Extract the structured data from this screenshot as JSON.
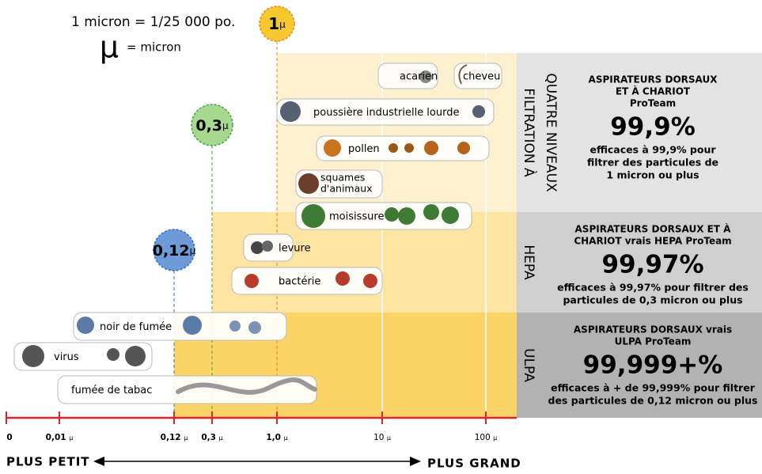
{
  "header": {
    "conversion": "1 micron = 1/25 000 po.",
    "symbol": "µ",
    "symbol_text": "= micron"
  },
  "badges": [
    {
      "value": "1",
      "unit": "µ"
    },
    {
      "value": "0,3",
      "unit": "µ"
    },
    {
      "value": "0,12",
      "unit": "µ"
    }
  ],
  "particles": [
    "acarien",
    "cheveu",
    "poussière industrielle lourde",
    "pollen",
    [
      "squames",
      "d'animaux"
    ],
    "moisissure",
    "levure",
    "bactérie",
    "noir de fumée",
    "virus",
    "fumée de tabac"
  ],
  "panels": [
    {
      "side": [
        "FILTRATION À",
        "QUATRE NIVEAUX"
      ],
      "heading": [
        "ASPIRATEURS DORSAUX",
        "ET À CHARIOT",
        "ProTeam"
      ],
      "percent": "99,9%",
      "description": [
        "efficaces à 99,9% pour",
        "filtrer des particules de",
        "1 micron ou plus"
      ]
    },
    {
      "side": [
        "HEPA"
      ],
      "heading": [
        "ASPIRATEURS DORSAUX ET À",
        "CHARIOT vrais HEPA ProTeam"
      ],
      "percent": "99,97%",
      "description": [
        "efficaces à 99,97% pour filtrer des",
        "particules de 0,3 micron ou plus"
      ]
    },
    {
      "side": [
        "ULPA"
      ],
      "heading": [
        "ASPIRATEURS DORSAUX vrais",
        "ULPA ProTeam"
      ],
      "percent": "99,999+%",
      "description": [
        "efficaces à + de 99,999% pour filtrer",
        "des particules de 0,12 micron ou plus"
      ]
    }
  ],
  "axis": {
    "ticks": [
      {
        "value": "0"
      },
      {
        "value": "0,01",
        "unit": "µ"
      },
      {
        "value": "0,12",
        "unit": "µ"
      },
      {
        "value": "0,3",
        "unit": "µ"
      },
      {
        "value": "1,0",
        "unit": "µ"
      },
      {
        "value": "10",
        "unit": "µ"
      },
      {
        "value": "100",
        "unit": "µ"
      }
    ],
    "smaller": "PLUS PETIT",
    "larger": "PLUS GRAND"
  }
}
